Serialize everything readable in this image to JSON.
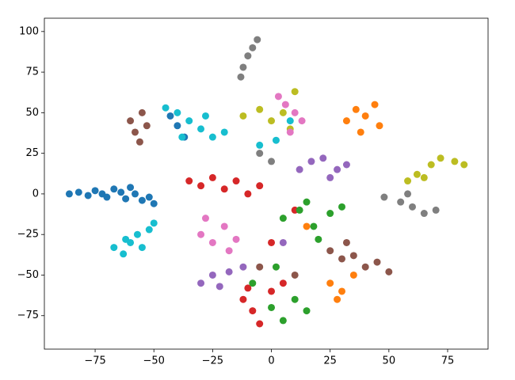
{
  "chart_data": {
    "type": "scatter",
    "xlim": [
      -96.6,
      92.2
    ],
    "ylim": [
      -95.6,
      108.2
    ],
    "xticks": [
      {
        "value": -75,
        "label": "−75"
      },
      {
        "value": -50,
        "label": "−50"
      },
      {
        "value": -25,
        "label": "−25"
      },
      0,
      25,
      50,
      75
    ],
    "yticks": [
      {
        "value": -75,
        "label": "−75"
      },
      {
        "value": -50,
        "label": "−50"
      },
      {
        "value": -25,
        "label": "−25"
      },
      0,
      25,
      50,
      75,
      100
    ],
    "series": [
      {
        "color": "#1f77b4",
        "x": [
          -86,
          -82,
          -78,
          -75,
          -72,
          -70,
          -67,
          -64,
          -62,
          -60,
          -58,
          -55,
          -52,
          -50,
          -40,
          -37,
          -43
        ],
        "y": [
          0,
          1,
          -1,
          2,
          0,
          -2,
          3,
          1,
          -3,
          4,
          0,
          -4,
          -2,
          -6,
          42,
          35,
          48
        ]
      },
      {
        "color": "#8c564b",
        "x": [
          -60,
          -58,
          -55,
          -56,
          -53,
          25,
          30,
          35,
          40,
          45,
          50,
          32,
          -5,
          10
        ],
        "y": [
          45,
          38,
          50,
          32,
          42,
          -35,
          -40,
          -38,
          -45,
          -42,
          -48,
          -30,
          -45,
          -50
        ]
      },
      {
        "color": "#7f7f7f",
        "x": [
          -12,
          -10,
          -8,
          -6,
          -13,
          48,
          55,
          60,
          65,
          70,
          58,
          -5,
          0
        ],
        "y": [
          78,
          85,
          90,
          95,
          72,
          -2,
          -5,
          -8,
          -12,
          -10,
          0,
          25,
          20
        ]
      },
      {
        "color": "#bcbd22",
        "x": [
          -12,
          -5,
          0,
          5,
          8,
          58,
          62,
          68,
          72,
          78,
          82,
          65,
          10
        ],
        "y": [
          48,
          52,
          45,
          50,
          40,
          8,
          12,
          18,
          22,
          20,
          18,
          10,
          63
        ]
      },
      {
        "color": "#ff7f0e",
        "x": [
          32,
          36,
          40,
          44,
          46,
          38,
          25,
          30,
          35,
          28,
          15
        ],
        "y": [
          45,
          52,
          48,
          55,
          42,
          38,
          -55,
          -60,
          -50,
          -65,
          -20
        ]
      },
      {
        "color": "#e377c2",
        "x": [
          3,
          6,
          10,
          13,
          8,
          -30,
          -25,
          -20,
          -15,
          -28,
          -18
        ],
        "y": [
          60,
          55,
          50,
          45,
          38,
          -25,
          -30,
          -20,
          -28,
          -15,
          -35
        ]
      },
      {
        "color": "#9467bd",
        "x": [
          12,
          17,
          22,
          28,
          32,
          25,
          -30,
          -25,
          -18,
          -12,
          -22,
          5
        ],
        "y": [
          15,
          20,
          22,
          15,
          18,
          10,
          -55,
          -50,
          -48,
          -45,
          -57,
          -30
        ]
      },
      {
        "color": "#d62728",
        "x": [
          -35,
          -30,
          -25,
          -20,
          -15,
          -10,
          -5,
          -12,
          -8,
          -5,
          0,
          5,
          -10,
          0,
          10
        ],
        "y": [
          8,
          5,
          10,
          3,
          8,
          0,
          5,
          -65,
          -72,
          -80,
          -60,
          -55,
          -58,
          -30,
          -10
        ]
      },
      {
        "color": "#2ca02c",
        "x": [
          5,
          12,
          18,
          25,
          30,
          15,
          20,
          -8,
          0,
          5,
          10,
          15,
          2
        ],
        "y": [
          -15,
          -10,
          -20,
          -12,
          -8,
          -5,
          -28,
          -55,
          -70,
          -78,
          -65,
          -72,
          -45
        ]
      },
      {
        "color": "#17becf",
        "x": [
          -67,
          -63,
          -60,
          -57,
          -55,
          -52,
          -50,
          -62,
          -45,
          -40,
          -35,
          -30,
          -25,
          -20,
          -38,
          -28,
          -5,
          2,
          8
        ],
        "y": [
          -33,
          -37,
          -30,
          -25,
          -33,
          -22,
          -18,
          -28,
          53,
          50,
          45,
          40,
          35,
          38,
          35,
          48,
          30,
          33,
          45
        ]
      }
    ]
  }
}
